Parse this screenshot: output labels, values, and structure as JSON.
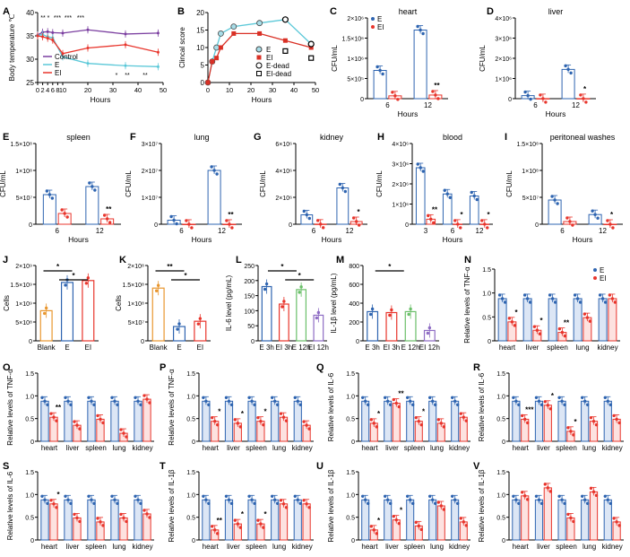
{
  "figure": {
    "colors": {
      "control": "#7b3fa0",
      "E": "#2e64b0",
      "EI": "#e8352c",
      "cyan": "#5bc8d8",
      "red2": "#d93025",
      "blank": "#e8962e",
      "green": "#6abf69",
      "purple": "#8e6cc4",
      "axis": "#000000"
    }
  },
  "chart_data": [
    {
      "panel": "A",
      "type": "line",
      "ylabel": "Body temperature ℃",
      "xlabel": "Hours",
      "xticks": [
        "0",
        "2",
        "4",
        "6",
        "8",
        "10",
        "20",
        "30",
        "40",
        "50"
      ],
      "yticks": [
        "25",
        "30",
        "35",
        "40"
      ],
      "ylim": [
        25,
        40
      ],
      "series": [
        {
          "name": "Control",
          "x": [
            0,
            2,
            4,
            6,
            10,
            20,
            35,
            48
          ],
          "values": [
            35.2,
            35.8,
            35.9,
            35.7,
            35.6,
            36.3,
            35.4,
            35.6
          ]
        },
        {
          "name": "E",
          "x": [
            0,
            2,
            4,
            6,
            10,
            20,
            35,
            48
          ],
          "values": [
            35.1,
            35.3,
            34.8,
            34.6,
            30.5,
            29.1,
            28.6,
            28.4
          ]
        },
        {
          "name": "EI",
          "x": [
            0,
            2,
            4,
            6,
            10,
            20,
            35,
            48
          ],
          "values": [
            35.0,
            34.8,
            34.5,
            34.1,
            31.2,
            32.4,
            33.1,
            31.5
          ]
        }
      ],
      "annotations": [
        "**",
        "*",
        "***",
        "***",
        "***",
        "*",
        "**",
        "**"
      ]
    },
    {
      "panel": "B",
      "type": "line",
      "ylabel": "Clincal score",
      "xlabel": "Hours",
      "xticks": [
        "0",
        "10",
        "20",
        "30",
        "40",
        "50"
      ],
      "yticks": [
        "0",
        "5",
        "10",
        "15",
        "20"
      ],
      "ylim": [
        0,
        20
      ],
      "series": [
        {
          "name": "E",
          "x": [
            0,
            2,
            4,
            6,
            12,
            24,
            36,
            48
          ],
          "values": [
            0,
            6,
            10,
            14,
            16,
            17,
            18,
            11
          ]
        },
        {
          "name": "EI",
          "x": [
            0,
            2,
            4,
            6,
            12,
            24,
            36,
            48
          ],
          "values": [
            0,
            6,
            7,
            10,
            14,
            14,
            12,
            10
          ]
        },
        {
          "name": "E-dead",
          "x": [
            36,
            48
          ],
          "values": [
            18,
            11
          ]
        },
        {
          "name": "EI-dead",
          "x": [
            36,
            48
          ],
          "values": [
            9,
            7
          ]
        }
      ]
    },
    {
      "panel": "C",
      "type": "bar",
      "title": "heart",
      "ylabel": "CFU/mL",
      "xlabel": "Hours",
      "categories": [
        "6",
        "12"
      ],
      "yticks": [
        "0",
        "5×10⁵",
        "1×10⁶",
        "1.5×10⁶",
        "2×10⁶"
      ],
      "ylim": [
        0,
        2000000
      ],
      "series": [
        {
          "name": "E",
          "values": [
            700000,
            1700000
          ]
        },
        {
          "name": "EI",
          "values": [
            70000,
            90000
          ]
        }
      ],
      "legend": [
        "E",
        "EI"
      ],
      "annotations": [
        "**"
      ]
    },
    {
      "panel": "D",
      "type": "bar",
      "title": "liver",
      "ylabel": "CFU/mL",
      "xlabel": "Hours",
      "categories": [
        "6",
        "12"
      ],
      "yticks": [
        "0",
        "1×10⁶",
        "2×10⁶",
        "3×10⁶",
        "4×10⁶"
      ],
      "ylim": [
        0,
        4000000
      ],
      "series": [
        {
          "name": "E",
          "values": [
            150000,
            1450000
          ]
        },
        {
          "name": "EI",
          "values": [
            5000,
            5000
          ]
        }
      ],
      "annotations": [
        "*"
      ]
    },
    {
      "panel": "E",
      "type": "bar",
      "title": "spleen",
      "ylabel": "CFU/mL",
      "xlabel": "Hours",
      "categories": [
        "6",
        "12"
      ],
      "yticks": [
        "0",
        "5×10⁷",
        "1×10⁸",
        "1.5×10⁸"
      ],
      "ylim": [
        0,
        150000000
      ],
      "series": [
        {
          "name": "E",
          "values": [
            55000000,
            70000000
          ]
        },
        {
          "name": "EI",
          "values": [
            20000000,
            10000000
          ]
        }
      ],
      "annotations": [
        "**"
      ]
    },
    {
      "panel": "F",
      "type": "bar",
      "title": "lung",
      "ylabel": "CFU/mL",
      "xlabel": "Hours",
      "categories": [
        "6",
        "12"
      ],
      "yticks": [
        "0",
        "1×10⁷",
        "2×10⁷",
        "3×10⁷"
      ],
      "ylim": [
        0,
        30000000
      ],
      "series": [
        {
          "name": "E",
          "values": [
            1500000,
            20000000
          ]
        },
        {
          "name": "EI",
          "values": [
            10000,
            10000
          ]
        }
      ],
      "annotations": [
        "**"
      ]
    },
    {
      "panel": "G",
      "type": "bar",
      "title": "kidney",
      "ylabel": "CFU/mL",
      "xlabel": "Hours",
      "categories": [
        "6",
        "12"
      ],
      "yticks": [
        "0",
        "2×10⁶",
        "4×10⁶",
        "6×10⁶"
      ],
      "ylim": [
        0,
        6000000
      ],
      "series": [
        {
          "name": "E",
          "values": [
            700000,
            2700000
          ]
        },
        {
          "name": "EI",
          "values": [
            10000,
            200000
          ]
        }
      ],
      "annotations": [
        "*"
      ]
    },
    {
      "panel": "H",
      "type": "bar",
      "title": "blood",
      "ylabel": "CFU/mL",
      "xlabel": "Hours",
      "categories": [
        "3",
        "6",
        "12"
      ],
      "yticks": [
        "0",
        "1×10⁶",
        "2×10⁶",
        "3×10⁶",
        "4×10⁶"
      ],
      "ylim": [
        0,
        4000000
      ],
      "series": [
        {
          "name": "E",
          "values": [
            2800000,
            1500000,
            1400000
          ]
        },
        {
          "name": "EI",
          "values": [
            250000,
            5000,
            5000
          ]
        }
      ],
      "annotations": [
        "**",
        "*",
        "*"
      ]
    },
    {
      "panel": "I",
      "type": "bar",
      "title": "peritoneal washes",
      "ylabel": "CFU/mL",
      "xlabel": "Hours",
      "categories": [
        "6",
        "12"
      ],
      "yticks": [
        "0",
        "5×10⁷",
        "1×10⁸",
        "1.5×10⁸"
      ],
      "ylim": [
        0,
        150000000
      ],
      "series": [
        {
          "name": "E",
          "values": [
            45000000,
            18000000
          ]
        },
        {
          "name": "EI",
          "values": [
            5000000,
            10000
          ]
        }
      ],
      "annotations": [
        "*"
      ]
    },
    {
      "panel": "J",
      "type": "bar",
      "ylabel": "Cells",
      "categories": [
        "Blank",
        "E",
        "EI"
      ],
      "yticks": [
        "0",
        "5×10⁸",
        "1×10⁹",
        "1.5×10⁹",
        "2×10⁹"
      ],
      "ylim": [
        0,
        2000000000
      ],
      "values": [
        800000000,
        1550000000,
        1600000000
      ],
      "annotations": [
        "*",
        "*"
      ]
    },
    {
      "panel": "K",
      "type": "bar",
      "ylabel": "Cells",
      "categories": [
        "Blank",
        "E",
        "EI"
      ],
      "yticks": [
        "0",
        "5×10⁷",
        "1×10⁸",
        "1.5×10⁸",
        "2×10⁸"
      ],
      "ylim": [
        0,
        200000000
      ],
      "values": [
        140000000,
        38000000,
        52000000
      ],
      "annotations": [
        "**",
        "*"
      ]
    },
    {
      "panel": "L",
      "type": "bar",
      "ylabel": "IL-6 level (pg/mL)",
      "categories": [
        "E 3h",
        "EI 3h",
        "E 12h",
        "EI 12h"
      ],
      "yticks": [
        "0",
        "50",
        "100",
        "150",
        "200",
        "250"
      ],
      "ylim": [
        0,
        250
      ],
      "values": [
        180,
        122,
        170,
        85
      ],
      "annotations": [
        "*",
        "*"
      ]
    },
    {
      "panel": "M",
      "type": "bar",
      "ylabel": "IL-1β level (pg/mL)",
      "categories": [
        "E 3h",
        "EI 3h",
        "E 12h",
        "EI 12h"
      ],
      "yticks": [
        "0",
        "200",
        "400",
        "600",
        "800"
      ],
      "ylim": [
        0,
        800
      ],
      "values": [
        310,
        300,
        310,
        110
      ],
      "annotations": [
        "*"
      ]
    },
    {
      "panel": "N",
      "type": "bar",
      "ylabel": "Relative levels of TNF-α",
      "categories": [
        "heart",
        "liver",
        "spleen",
        "lung",
        "kidney"
      ],
      "yticks": [
        "0",
        "0.5",
        "1.0",
        "1.5"
      ],
      "ylim": [
        0,
        1.7
      ],
      "series": [
        {
          "name": "E",
          "values": [
            1.0,
            1.0,
            1.0,
            1.0,
            1.0
          ]
        },
        {
          "name": "EI",
          "values": [
            0.45,
            0.25,
            0.2,
            0.55,
            1.0
          ]
        }
      ],
      "legend": [
        "E",
        "EI"
      ],
      "annotations": [
        "*",
        "*",
        "**"
      ]
    },
    {
      "panel": "O",
      "type": "bar",
      "ylabel": "Relative levels of TNF-α",
      "categories": [
        "heart",
        "liver",
        "spleen",
        "lung",
        "kidney"
      ],
      "yticks": [
        "0",
        "0.5",
        "1.0",
        "1.5"
      ],
      "ylim": [
        0,
        1.7
      ],
      "series": [
        {
          "name": "E",
          "values": [
            1.0,
            1.0,
            1.0,
            1.0,
            1.0
          ]
        },
        {
          "name": "EI",
          "values": [
            0.6,
            0.4,
            0.55,
            0.2,
            1.05
          ]
        }
      ],
      "annotations": [
        "**"
      ]
    },
    {
      "panel": "P",
      "type": "bar",
      "ylabel": "Relative levels of TNF-α",
      "categories": [
        "heart",
        "liver",
        "spleen",
        "lung",
        "kidney"
      ],
      "yticks": [
        "0",
        "0.5",
        "1.0",
        "1.5"
      ],
      "ylim": [
        0,
        1.7
      ],
      "series": [
        {
          "name": "E",
          "values": [
            1.0,
            1.0,
            1.0,
            1.0,
            1.0
          ]
        },
        {
          "name": "EI",
          "values": [
            0.5,
            0.45,
            0.5,
            0.6,
            0.4
          ]
        }
      ],
      "annotations": [
        "*",
        "*",
        "*"
      ]
    },
    {
      "panel": "Q",
      "type": "bar",
      "ylabel": "Relative levels of IL-6",
      "categories": [
        "heart",
        "liver",
        "spleen",
        "lung",
        "kidney"
      ],
      "yticks": [
        "0",
        "0.5",
        "1.0",
        "1.5"
      ],
      "ylim": [
        0,
        1.7
      ],
      "series": [
        {
          "name": "E",
          "values": [
            1.0,
            1.0,
            1.0,
            1.0,
            1.0
          ]
        },
        {
          "name": "EI",
          "values": [
            0.45,
            0.95,
            0.5,
            0.45,
            0.6
          ]
        }
      ],
      "annotations": [
        "*",
        "**",
        "*"
      ]
    },
    {
      "panel": "R",
      "type": "bar",
      "ylabel": "Relative levels of IL-6",
      "categories": [
        "heart",
        "liver",
        "spleen",
        "lung",
        "kidney"
      ],
      "yticks": [
        "0",
        "0.5",
        "1.0",
        "1.5"
      ],
      "ylim": [
        0,
        1.7
      ],
      "series": [
        {
          "name": "E",
          "values": [
            1.0,
            1.0,
            1.0,
            1.0,
            1.0
          ]
        },
        {
          "name": "EI",
          "values": [
            0.55,
            0.9,
            0.25,
            0.5,
            0.55
          ]
        }
      ],
      "annotations": [
        "***",
        "*",
        "*"
      ]
    },
    {
      "panel": "S",
      "type": "bar",
      "ylabel": "Relative levels of IL-6",
      "categories": [
        "heart",
        "liver",
        "spleen",
        "lung",
        "kidney"
      ],
      "yticks": [
        "0",
        "0.5",
        "1.0",
        "1.5"
      ],
      "ylim": [
        0,
        1.7
      ],
      "series": [
        {
          "name": "E",
          "values": [
            1.0,
            1.0,
            1.0,
            1.0,
            1.0
          ]
        },
        {
          "name": "EI",
          "values": [
            0.9,
            0.55,
            0.45,
            0.55,
            0.65
          ]
        }
      ],
      "annotations": [
        "*"
      ]
    },
    {
      "panel": "T",
      "type": "bar",
      "ylabel": "Relative levels of IL-1β",
      "categories": [
        "heart",
        "liver",
        "spleen",
        "lung",
        "kidney"
      ],
      "yticks": [
        "0",
        "0.5",
        "1.0",
        "1.5"
      ],
      "ylim": [
        0,
        1.7
      ],
      "series": [
        {
          "name": "E",
          "values": [
            1.0,
            1.0,
            1.0,
            1.0,
            1.0
          ]
        },
        {
          "name": "EI",
          "values": [
            0.25,
            0.4,
            0.4,
            0.9,
            0.9
          ]
        }
      ],
      "annotations": [
        "**",
        "*",
        "*"
      ]
    },
    {
      "panel": "U",
      "type": "bar",
      "ylabel": "Relative levels of IL-1β",
      "categories": [
        "heart",
        "liver",
        "spleen",
        "lung",
        "kidney"
      ],
      "yticks": [
        "0",
        "0.5",
        "1.0",
        "1.5"
      ],
      "ylim": [
        0,
        1.7
      ],
      "series": [
        {
          "name": "E",
          "values": [
            1.0,
            1.0,
            1.0,
            1.0,
            1.0
          ]
        },
        {
          "name": "EI",
          "values": [
            0.25,
            0.5,
            0.35,
            0.85,
            0.45
          ]
        }
      ],
      "annotations": [
        "*",
        "*"
      ]
    },
    {
      "panel": "V",
      "type": "bar",
      "ylabel": "Relative levels of IL-1β",
      "categories": [
        "heart",
        "liver",
        "spleen",
        "lung",
        "kidney"
      ],
      "yticks": [
        "0",
        "0.5",
        "1.0",
        "1.5"
      ],
      "ylim": [
        0,
        1.7
      ],
      "series": [
        {
          "name": "E",
          "values": [
            1.0,
            1.0,
            1.0,
            1.0,
            1.0
          ]
        },
        {
          "name": "EI",
          "values": [
            1.1,
            1.3,
            0.55,
            1.2,
            0.45
          ]
        }
      ]
    }
  ]
}
